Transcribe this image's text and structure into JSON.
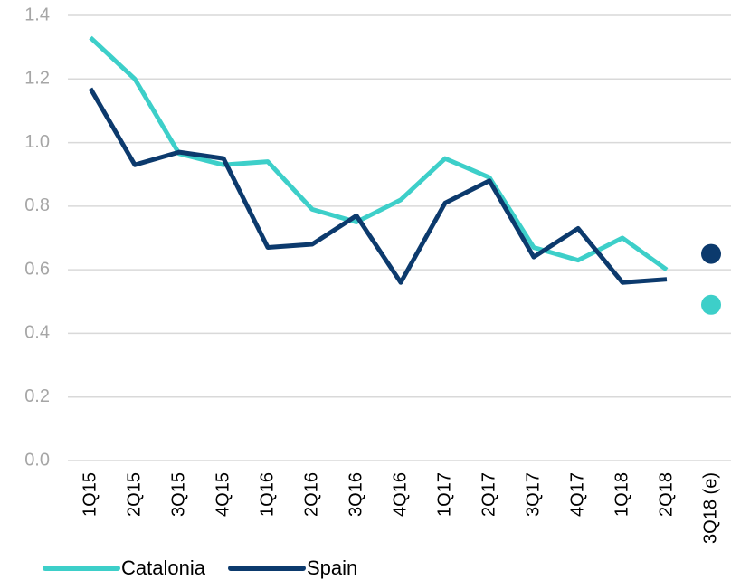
{
  "chart_data": {
    "type": "line",
    "categories": [
      "1Q15",
      "2Q15",
      "3Q15",
      "4Q15",
      "1Q16",
      "2Q16",
      "3Q16",
      "4Q16",
      "1Q17",
      "2Q17",
      "3Q17",
      "4Q17",
      "1Q18",
      "2Q18",
      "3Q18 (e)"
    ],
    "series": [
      {
        "name": "Catalonia",
        "color": "#3dcfc9",
        "values": [
          1.33,
          1.2,
          0.965,
          0.93,
          0.94,
          0.79,
          0.75,
          0.82,
          0.95,
          0.89,
          0.67,
          0.63,
          0.7,
          0.6,
          0.49
        ]
      },
      {
        "name": "Spain",
        "color": "#0c3a6d",
        "values": [
          1.17,
          0.93,
          0.97,
          0.95,
          0.67,
          0.68,
          0.77,
          0.56,
          0.81,
          0.88,
          0.64,
          0.73,
          0.56,
          0.57,
          0.65
        ]
      }
    ],
    "ylim": [
      0,
      1.4
    ],
    "yticks": [
      {
        "value": 0,
        "label": "0.0"
      },
      0.2,
      0.4,
      0.6,
      0.8,
      {
        "value": 1,
        "label": "1.0"
      },
      1.2,
      1.4
    ],
    "grid": true
  }
}
